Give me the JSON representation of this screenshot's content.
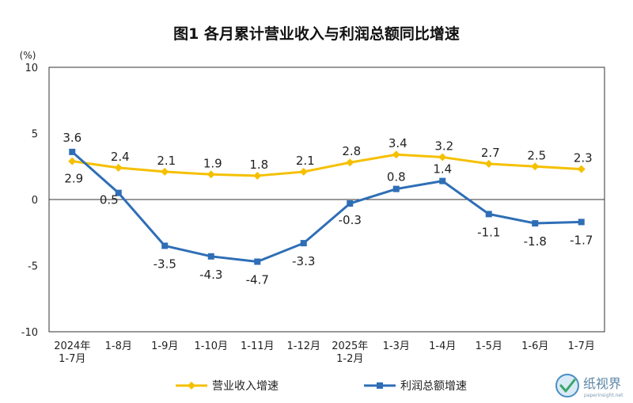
{
  "chart_data": {
    "type": "line",
    "title": "图1  各月累计营业收入与利润总额同比增速",
    "y_unit": "(%)",
    "ylim": [
      -10,
      10
    ],
    "yticks": [
      "10",
      "5",
      "0",
      "-5",
      "-10"
    ],
    "categories": [
      [
        "2024年",
        "1-7月"
      ],
      [
        "1-8月"
      ],
      [
        "1-9月"
      ],
      [
        "1-10月"
      ],
      [
        "1-11月"
      ],
      [
        "1-12月"
      ],
      [
        "2025年",
        "1-2月"
      ],
      [
        "1-3月"
      ],
      [
        "1-4月"
      ],
      [
        "1-5月"
      ],
      [
        "1-6月"
      ],
      [
        "1-7月"
      ]
    ],
    "series": [
      {
        "name": "营业收入增速",
        "color": "#f5c000",
        "marker": "diamond",
        "values": [
          2.9,
          2.4,
          2.1,
          1.9,
          1.8,
          2.1,
          2.8,
          3.4,
          3.2,
          2.7,
          2.5,
          2.3
        ],
        "labels": [
          "2.9",
          "2.4",
          "2.1",
          "1.9",
          "1.8",
          "2.1",
          "2.8",
          "3.4",
          "3.2",
          "2.7",
          "2.5",
          "2.3"
        ]
      },
      {
        "name": "利润总额增速",
        "color": "#2e6eb6",
        "marker": "square",
        "values": [
          3.6,
          0.5,
          -3.5,
          -4.3,
          -4.7,
          -3.3,
          -0.3,
          0.8,
          1.4,
          -1.1,
          -1.8,
          -1.7
        ],
        "labels": [
          "3.6",
          "0.5",
          "-3.5",
          "-4.3",
          "-4.7",
          "-3.3",
          "-0.3",
          "0.8",
          "1.4",
          "-1.1",
          "-1.8",
          "-1.7"
        ]
      }
    ],
    "legend_position": "bottom",
    "grid": false
  },
  "watermark": {
    "text": "纸视界",
    "sub": "paperinsight.net"
  }
}
